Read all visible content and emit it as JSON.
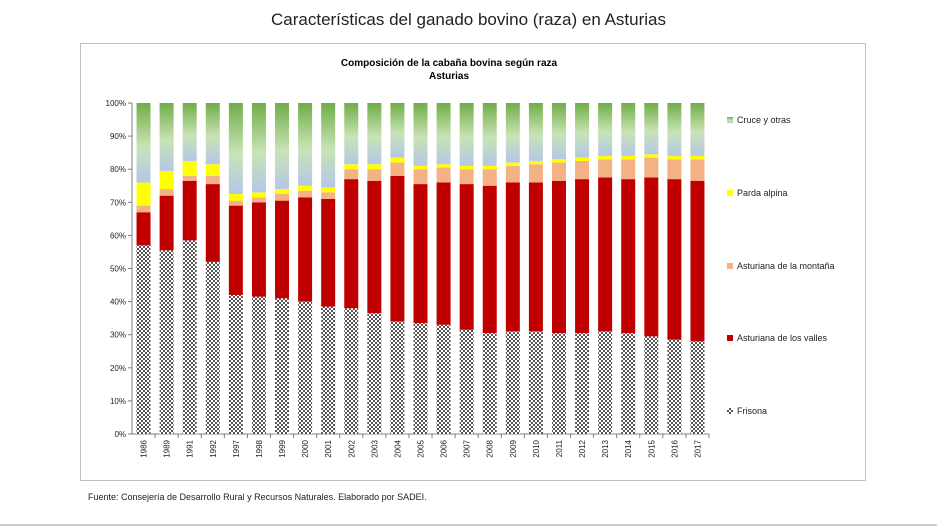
{
  "page": {
    "title": "Características del ganado bovino (raza) en Asturias",
    "source": "Fuente: Consejería de Desarrollo Rural y Recursos Naturales. Elaborado por SADEI."
  },
  "chart_data": {
    "type": "bar",
    "stacked": true,
    "percent": true,
    "title": "Composición de la cabaña bovina según raza",
    "subtitle": "Asturias",
    "xlabel": "",
    "ylabel": "",
    "ylim": [
      0,
      100
    ],
    "yticks": [
      "0%",
      "10%",
      "20%",
      "30%",
      "40%",
      "50%",
      "60%",
      "70%",
      "80%",
      "90%",
      "100%"
    ],
    "grid": false,
    "legend": "right",
    "categories": [
      "1986",
      "1989",
      "1991",
      "1992",
      "1997",
      "1998",
      "1999",
      "2000",
      "2001",
      "2002",
      "2003",
      "2004",
      "2005",
      "2006",
      "2007",
      "2008",
      "2009",
      "2010",
      "2011",
      "2012",
      "2013",
      "2014",
      "2015",
      "2016",
      "2017"
    ],
    "series": [
      {
        "name": "Frisona",
        "color": "#808080",
        "values": [
          57,
          55.5,
          58.5,
          52,
          42,
          41.5,
          41,
          40,
          38.5,
          38,
          36.5,
          34,
          33.5,
          33,
          31.5,
          30.5,
          31,
          31,
          30.5,
          30.5,
          31,
          30.5,
          29.5,
          28.5,
          28
        ]
      },
      {
        "name": "Asturiana de los valles",
        "color": "#c00000",
        "values": [
          10,
          16.5,
          18,
          23.5,
          27,
          28.5,
          29.5,
          31.5,
          32.5,
          39,
          40,
          44,
          42,
          43,
          44,
          44.5,
          45,
          45,
          46,
          46.5,
          46.5,
          46.5,
          48,
          48.5,
          48.5
        ]
      },
      {
        "name": "Asturiana de la montaña",
        "color": "#f4b183",
        "values": [
          2,
          2,
          1.5,
          2.5,
          1.5,
          1.5,
          2,
          2,
          2,
          3,
          3.5,
          4,
          4.5,
          4.5,
          4.5,
          5,
          5,
          5.5,
          5.5,
          5.5,
          5.5,
          6,
          6,
          6,
          6.5
        ]
      },
      {
        "name": "Parda alpina",
        "color": "#ffff00",
        "values": [
          7,
          5.5,
          4.5,
          3.5,
          2,
          1.5,
          1.5,
          1.5,
          1.5,
          1.5,
          1.5,
          1.5,
          1,
          1,
          1,
          1,
          1,
          1,
          1,
          1,
          1,
          1,
          1,
          1,
          1
        ]
      },
      {
        "name": "Cruce y otras",
        "color": "#a9d18e",
        "values": [
          24,
          20.5,
          17.5,
          18.5,
          27.5,
          27,
          26,
          25,
          25.5,
          18.5,
          18.5,
          16.5,
          19,
          18.5,
          19,
          19,
          18,
          17.5,
          17,
          16.5,
          16,
          16,
          15.5,
          16,
          16
        ]
      }
    ]
  }
}
